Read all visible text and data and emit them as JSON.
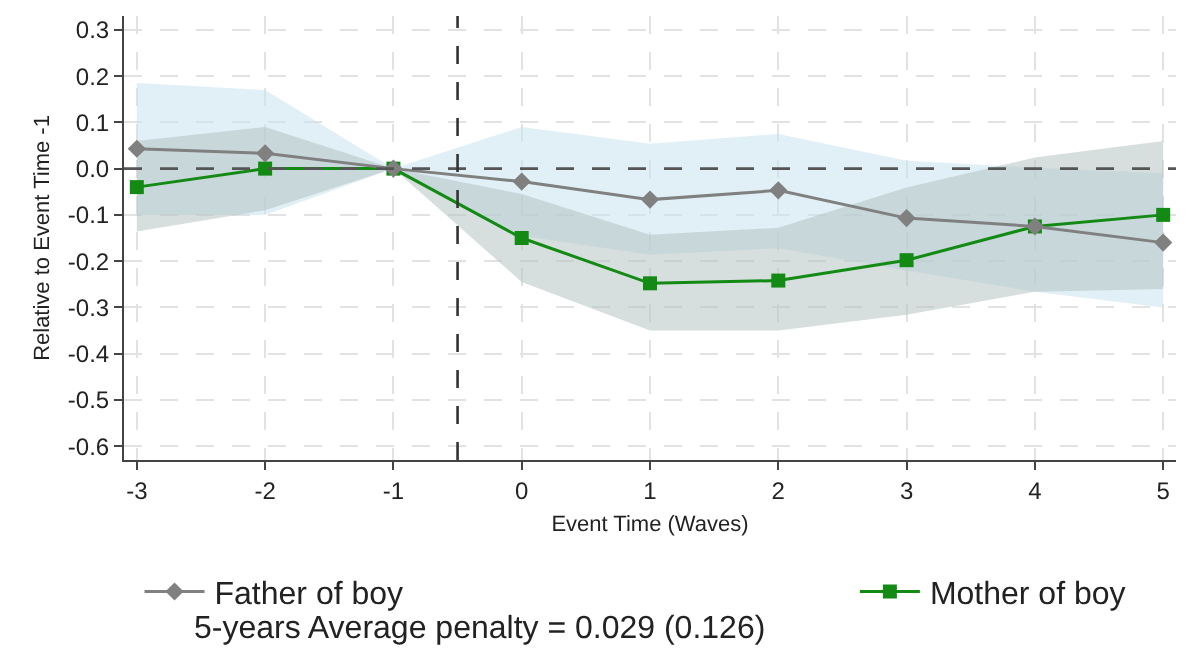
{
  "chart_data": {
    "type": "line",
    "xlabel": "Event Time (Waves)",
    "ylabel": "Relative to Event Time -1",
    "x": [
      -3,
      -2,
      -1,
      0,
      1,
      2,
      3,
      4,
      5
    ],
    "series": [
      {
        "name": "Father of boy",
        "color": "#808080",
        "marker": "diamond",
        "values": [
          0.043,
          0.033,
          0,
          -0.028,
          -0.067,
          -0.047,
          -0.107,
          -0.125,
          -0.16
        ],
        "lower": [
          -0.1,
          -0.1,
          0,
          -0.145,
          -0.186,
          -0.172,
          -0.22,
          -0.266,
          -0.3
        ],
        "upper": [
          0.185,
          0.17,
          0,
          0.09,
          0.054,
          0.075,
          0.017,
          0.002,
          -0.01
        ]
      },
      {
        "name": "Mother of boy",
        "color": "#138a13",
        "marker": "square",
        "values": [
          -0.04,
          0,
          0,
          -0.15,
          -0.248,
          -0.242,
          -0.198,
          -0.125,
          -0.1
        ],
        "lower": [
          -0.136,
          -0.09,
          0,
          -0.245,
          -0.35,
          -0.35,
          -0.316,
          -0.266,
          -0.26
        ],
        "upper": [
          0.06,
          0.09,
          0,
          -0.055,
          -0.143,
          -0.128,
          -0.041,
          0.024,
          0.06
        ]
      }
    ],
    "xlim": [
      -3.1,
      5.1
    ],
    "xticks": [
      -3,
      -2,
      -1,
      0,
      1,
      2,
      3,
      4,
      5
    ],
    "ylim": [
      -0.63,
      0.33
    ],
    "yticks": [
      {
        "value": -0.6,
        "label": "-0.6"
      },
      {
        "value": -0.5,
        "label": "-0.5"
      },
      {
        "value": -0.4,
        "label": "-0.4"
      },
      {
        "value": -0.3,
        "label": "-0.3"
      },
      {
        "value": -0.2,
        "label": "-0.2"
      },
      {
        "value": -0.1,
        "label": "-0.1"
      },
      {
        "value": 0,
        "label": "0.0"
      },
      {
        "value": 0.1,
        "label": "0.1"
      },
      {
        "value": 0.2,
        "label": "0.2"
      },
      {
        "value": 0.3,
        "label": "0.3"
      }
    ],
    "ref_lines": [
      {
        "axis": "y",
        "value": 0,
        "color": "#555555",
        "line_style": "dashed"
      },
      {
        "axis": "x",
        "value": -0.5,
        "color": "#333333",
        "line_style": "dashed"
      }
    ],
    "annotations": [
      "5-years Average penalty = 0.029 (0.126)"
    ],
    "grid": true,
    "legend": "bottom",
    "line_style": "solid"
  }
}
